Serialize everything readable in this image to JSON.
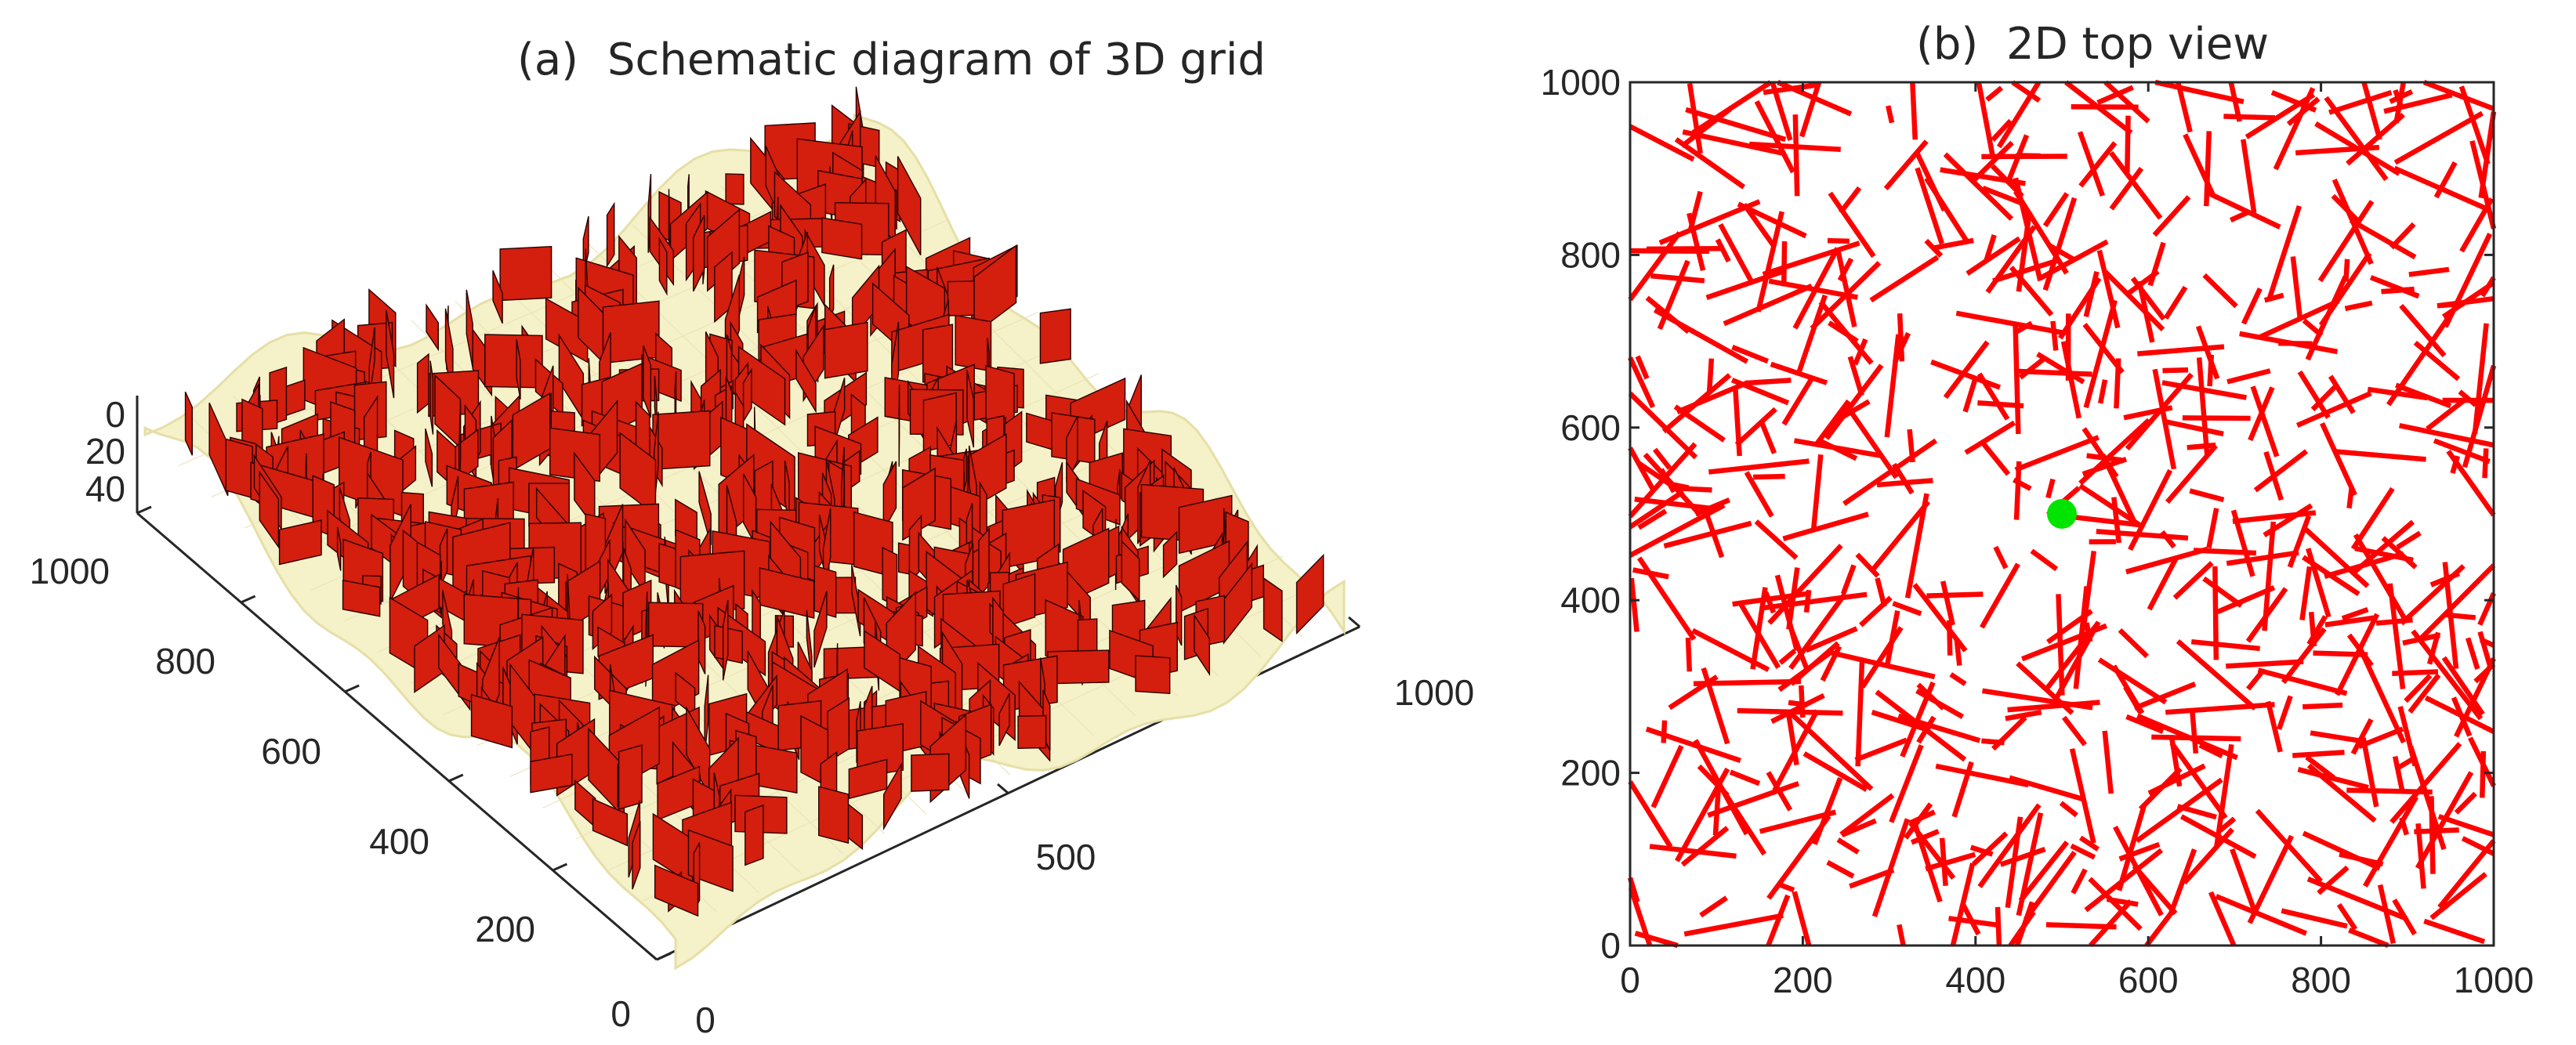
{
  "chart_data": [
    {
      "type": "surface-3d",
      "panel_label": "(a)",
      "title": "Schematic diagram of 3D grid",
      "x_ticks": [
        "0",
        "500",
        "1000"
      ],
      "y_ticks": [
        "0",
        "200",
        "400",
        "600",
        "800",
        "1000"
      ],
      "z_ticks": [
        "0",
        "20",
        "40"
      ],
      "xlim": [
        0,
        1000
      ],
      "ylim": [
        0,
        1000
      ],
      "zlim": [
        0,
        50
      ],
      "surface_color": "#f5f1c8",
      "fracture_color": "#d41e0e",
      "fracture_edge_color": "#2a0000"
    },
    {
      "type": "line-segments",
      "panel_label": "(b)",
      "title": "2D top view",
      "x_ticks": [
        "0",
        "200",
        "400",
        "600",
        "800",
        "1000"
      ],
      "y_ticks": [
        "0",
        "200",
        "400",
        "600",
        "800",
        "1000"
      ],
      "xlim": [
        0,
        1000
      ],
      "ylim": [
        0,
        1000
      ],
      "grid": false,
      "segment_color": "#ff0000",
      "marker_color": "#00e400",
      "marker_point": {
        "x": 500,
        "y": 500
      }
    }
  ]
}
